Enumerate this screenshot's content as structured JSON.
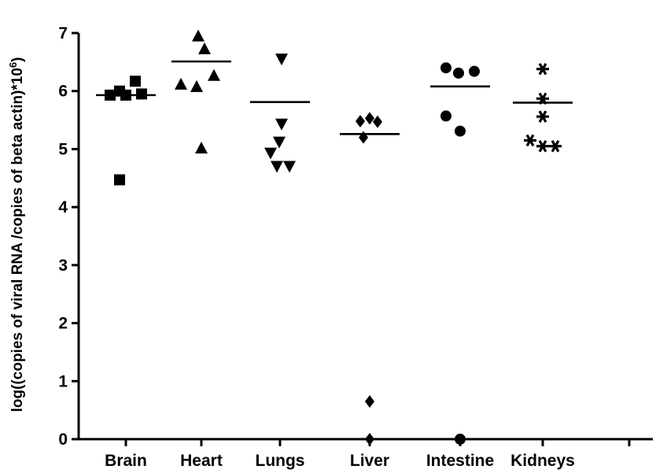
{
  "chart_data": {
    "type": "scatter",
    "categories": [
      "Brain",
      "Heart",
      "Lungs",
      "Liver",
      "Intestine",
      "Kidneys"
    ],
    "ylabel": "log((copies of viral RNA /copies of  beta actin)*10",
    "ylabel_superscript": "6",
    "ylabel_close": ")",
    "ylim": [
      0,
      7
    ],
    "yticks": [
      "0",
      "1",
      "2",
      "3",
      "4",
      "5",
      "6",
      "7"
    ],
    "grid": false,
    "series": [
      {
        "category": "Brain",
        "marker": "square",
        "mean": 5.93,
        "points": [
          6.17,
          6.0,
          5.93,
          5.93,
          5.95,
          4.47
        ]
      },
      {
        "category": "Heart",
        "marker": "triangle-up",
        "mean": 6.51,
        "points": [
          6.95,
          6.73,
          6.12,
          6.08,
          6.27,
          5.02
        ]
      },
      {
        "category": "Lungs",
        "marker": "triangle-down",
        "mean": 5.81,
        "points": [
          6.55,
          5.43,
          5.12,
          4.93,
          4.7,
          4.7
        ]
      },
      {
        "category": "Liver",
        "marker": "diamond",
        "mean": 5.26,
        "points": [
          5.48,
          5.53,
          5.47,
          5.2,
          0.65,
          0.0
        ]
      },
      {
        "category": "Intestine",
        "marker": "circle",
        "mean": 6.08,
        "points": [
          6.4,
          6.31,
          6.34,
          5.57,
          5.31,
          0.0
        ]
      },
      {
        "category": "Kidneys",
        "marker": "asterisk",
        "mean": 5.8,
        "points": [
          6.38,
          5.87,
          5.56,
          5.15,
          5.05,
          5.05
        ]
      }
    ]
  }
}
